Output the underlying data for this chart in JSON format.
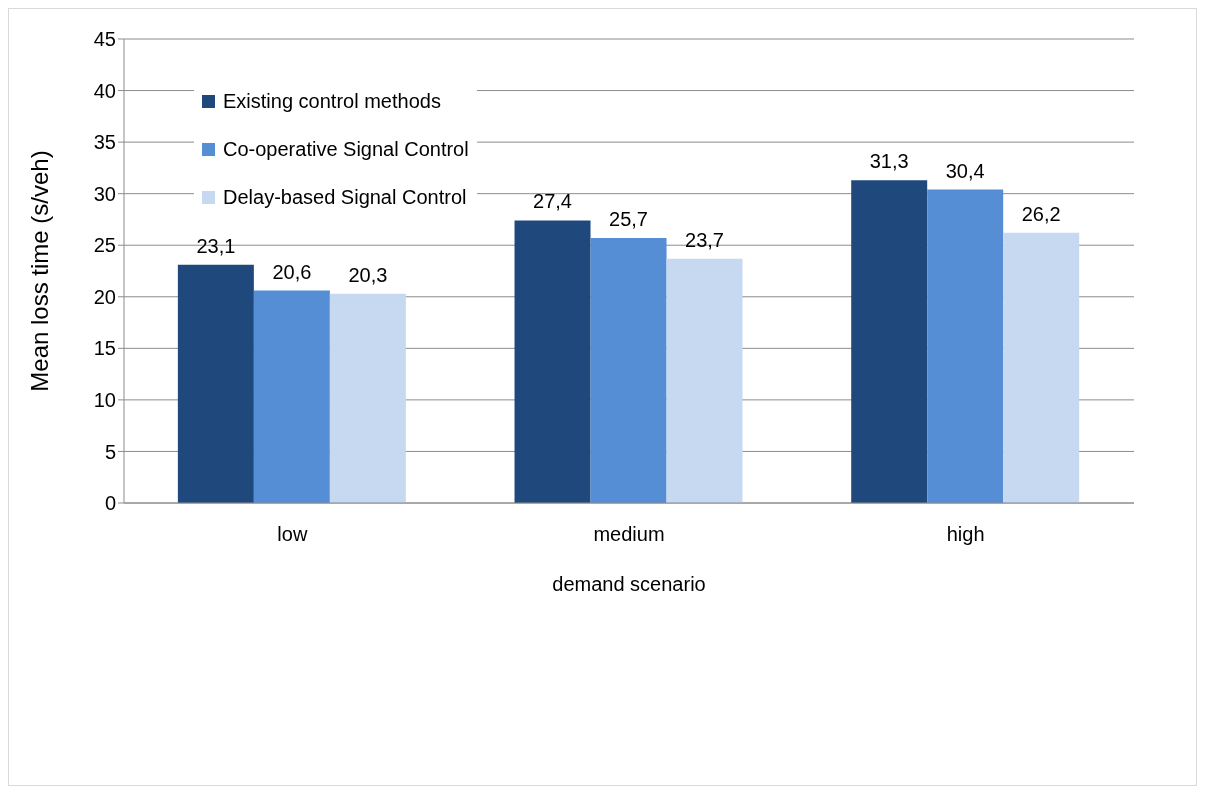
{
  "chart_data": {
    "type": "bar",
    "xlabel": "demand scenario",
    "ylabel": "Mean loss time (s/veh)",
    "categories": [
      "low",
      "medium",
      "high"
    ],
    "series": [
      {
        "name": "Existing control methods",
        "color": "#1f497d",
        "values": [
          23.1,
          27.4,
          31.3
        ],
        "value_labels": [
          "23,1",
          "27,4",
          "31,3"
        ]
      },
      {
        "name": "Co-operative Signal Control",
        "color": "#558ed5",
        "values": [
          20.6,
          25.7,
          30.4
        ],
        "value_labels": [
          "20,6",
          "25,7",
          "30,4"
        ]
      },
      {
        "name": "Delay-based Signal Control",
        "color": "#c6d9f1",
        "values": [
          20.3,
          23.7,
          26.2
        ],
        "value_labels": [
          "20,3",
          "23,7",
          "26,2"
        ]
      }
    ],
    "ylim": [
      0,
      45
    ],
    "yticks": [
      0,
      5,
      10,
      15,
      20,
      25,
      30,
      35,
      40,
      45
    ],
    "grid": "y",
    "legend": "top left"
  }
}
